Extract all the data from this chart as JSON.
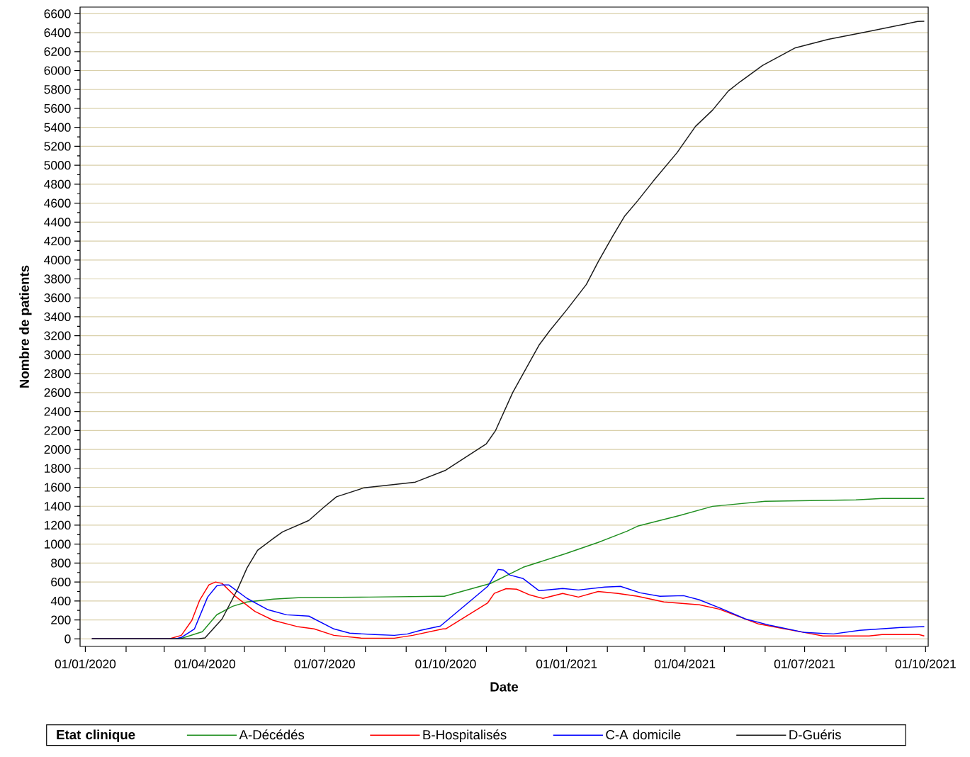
{
  "chart_data": {
    "type": "line",
    "xlabel": "Date",
    "ylabel": "Nombre de patients",
    "legend_title": "Etat clinique",
    "legend": "bottom",
    "grid": "y",
    "line_style": "solid",
    "xlim": [
      "2019-12-28",
      "2021-10-03"
    ],
    "ylim": [
      -80,
      6670
    ],
    "xticks": [
      {
        "value": "2020-01-01",
        "label": "01/01/2020"
      },
      {
        "value": "2020-02-01",
        "label": null
      },
      {
        "value": "2020-03-01",
        "label": null
      },
      {
        "value": "2020-04-01",
        "label": "01/04/2020"
      },
      {
        "value": "2020-05-01",
        "label": null
      },
      {
        "value": "2020-06-01",
        "label": null
      },
      {
        "value": "2020-07-01",
        "label": "01/07/2020"
      },
      {
        "value": "2020-08-01",
        "label": null
      },
      {
        "value": "2020-09-01",
        "label": null
      },
      {
        "value": "2020-10-01",
        "label": "01/10/2020"
      },
      {
        "value": "2020-11-01",
        "label": null
      },
      {
        "value": "2020-12-01",
        "label": null
      },
      {
        "value": "2021-01-01",
        "label": "01/01/2021"
      },
      {
        "value": "2021-02-01",
        "label": null
      },
      {
        "value": "2021-03-01",
        "label": null
      },
      {
        "value": "2021-04-01",
        "label": "01/04/2021"
      },
      {
        "value": "2021-05-01",
        "label": null
      },
      {
        "value": "2021-06-01",
        "label": null
      },
      {
        "value": "2021-07-01",
        "label": "01/07/2021"
      },
      {
        "value": "2021-08-01",
        "label": null
      },
      {
        "value": "2021-09-01",
        "label": null
      },
      {
        "value": "2021-10-01",
        "label": "01/10/2021"
      }
    ],
    "yticks": [
      0,
      200,
      400,
      600,
      800,
      1000,
      1200,
      1400,
      1600,
      1800,
      2000,
      2200,
      2400,
      2600,
      2800,
      3000,
      3200,
      3400,
      3600,
      3800,
      4000,
      4200,
      4400,
      4600,
      4800,
      5000,
      5200,
      5400,
      5600,
      5800,
      6000,
      6200,
      6400,
      6600
    ],
    "series": [
      {
        "name": "A-Décédés",
        "color": "#1f8f1f",
        "x": [
          "2020-01-06",
          "2020-03-13",
          "2020-03-30",
          "2020-04-10",
          "2020-04-22",
          "2020-05-03",
          "2020-05-23",
          "2020-06-11",
          "2020-08-04",
          "2020-09-25",
          "2020-09-30",
          "2020-11-04",
          "2020-11-29",
          "2020-12-31",
          "2021-01-25",
          "2021-02-16",
          "2021-02-24",
          "2021-03-28",
          "2021-04-22",
          "2021-06-01",
          "2021-08-09",
          "2021-08-29",
          "2021-09-30"
        ],
        "values": [
          0,
          0,
          75,
          255,
          344,
          390,
          420,
          434,
          441,
          449,
          450,
          584,
          756,
          898,
          1018,
          1137,
          1190,
          1302,
          1399,
          1452,
          1467,
          1482,
          1482
        ]
      },
      {
        "name": "B-Hospitalisés",
        "color": "#ff0000",
        "x": [
          "2020-01-06",
          "2020-03-05",
          "2020-03-14",
          "2020-03-22",
          "2020-03-28",
          "2020-04-04",
          "2020-04-09",
          "2020-04-14",
          "2020-04-24",
          "2020-05-09",
          "2020-05-23",
          "2020-06-11",
          "2020-06-23",
          "2020-07-08",
          "2020-07-29",
          "2020-08-23",
          "2020-09-06",
          "2020-09-29",
          "2020-10-01",
          "2020-11-02",
          "2020-11-07",
          "2020-11-16",
          "2020-11-24",
          "2020-12-04",
          "2020-12-14",
          "2020-12-29",
          "2021-01-10",
          "2021-01-25",
          "2021-02-09",
          "2021-02-24",
          "2021-03-16",
          "2021-04-12",
          "2021-04-27",
          "2021-05-27",
          "2021-06-16",
          "2021-07-01",
          "2021-07-15",
          "2021-08-19",
          "2021-08-29",
          "2021-09-26",
          "2021-09-30"
        ],
        "values": [
          0,
          0,
          37,
          195,
          410,
          570,
          600,
          585,
          450,
          290,
          195,
          127,
          105,
          37,
          7,
          7,
          37,
          105,
          105,
          380,
          480,
          530,
          524,
          464,
          427,
          480,
          441,
          500,
          480,
          450,
          389,
          360,
          314,
          157,
          105,
          67,
          30,
          30,
          45,
          45,
          30
        ]
      },
      {
        "name": "C-A domicile",
        "color": "#0000ff",
        "x": [
          "2020-01-06",
          "2020-03-10",
          "2020-03-14",
          "2020-03-24",
          "2020-04-03",
          "2020-04-10",
          "2020-04-14",
          "2020-04-19",
          "2020-05-03",
          "2020-05-19",
          "2020-06-02",
          "2020-06-19",
          "2020-07-08",
          "2020-07-20",
          "2020-08-08",
          "2020-08-23",
          "2020-09-02",
          "2020-09-12",
          "2020-09-27",
          "2020-11-02",
          "2020-11-10",
          "2020-11-14",
          "2020-11-19",
          "2020-11-29",
          "2020-12-11",
          "2020-12-29",
          "2021-01-10",
          "2021-01-30",
          "2021-02-11",
          "2021-02-26",
          "2021-03-13",
          "2021-03-31",
          "2021-04-12",
          "2021-04-27",
          "2021-05-17",
          "2021-06-05",
          "2021-07-01",
          "2021-07-23",
          "2021-08-12",
          "2021-09-13",
          "2021-09-30"
        ],
        "values": [
          0,
          0,
          15,
          105,
          441,
          560,
          570,
          570,
          427,
          307,
          254,
          240,
          105,
          60,
          45,
          37,
          52,
          90,
          135,
          554,
          733,
          726,
          673,
          636,
          509,
          531,
          516,
          546,
          554,
          486,
          449,
          456,
          412,
          329,
          210,
          142,
          67,
          52,
          90,
          120,
          130
        ]
      },
      {
        "name": "D-Guéris",
        "color": "#1a1a1a",
        "x": [
          "2020-01-06",
          "2020-03-27",
          "2020-04-01",
          "2020-04-14",
          "2020-04-26",
          "2020-05-03",
          "2020-05-11",
          "2020-05-23",
          "2020-05-30",
          "2020-06-19",
          "2020-06-30",
          "2020-07-10",
          "2020-07-31",
          "2020-09-08",
          "2020-10-01",
          "2020-11-01",
          "2020-11-08",
          "2020-11-21",
          "2020-12-11",
          "2020-12-19",
          "2021-01-01",
          "2021-01-16",
          "2021-01-25",
          "2021-02-05",
          "2021-02-14",
          "2021-02-24",
          "2021-03-08",
          "2021-03-26",
          "2021-04-09",
          "2021-04-22",
          "2021-05-04",
          "2021-05-13",
          "2021-05-30",
          "2021-06-24",
          "2021-07-19",
          "2021-08-19",
          "2021-09-25",
          "2021-09-30"
        ],
        "values": [
          0,
          0,
          10,
          210,
          530,
          750,
          935,
          1060,
          1130,
          1250,
          1385,
          1500,
          1595,
          1655,
          1780,
          2060,
          2200,
          2600,
          3100,
          3250,
          3472,
          3741,
          3981,
          4250,
          4460,
          4624,
          4834,
          5133,
          5410,
          5582,
          5784,
          5882,
          6054,
          6240,
          6330,
          6413,
          6518,
          6520
        ]
      }
    ]
  }
}
